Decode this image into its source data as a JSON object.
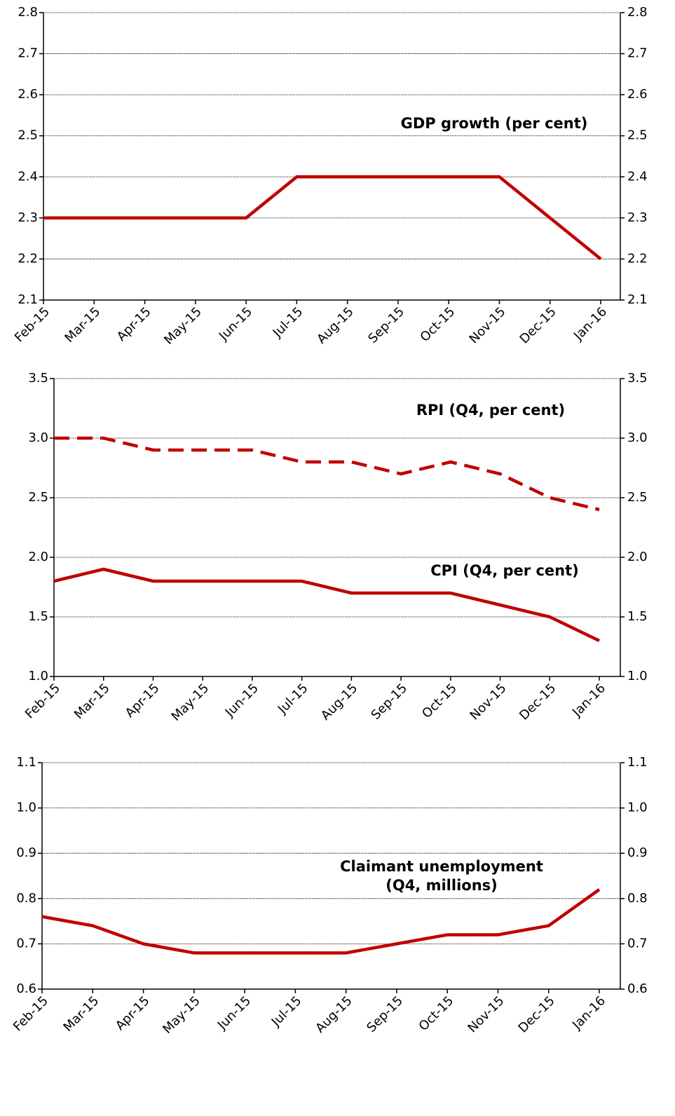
{
  "chart_data": [
    {
      "type": "line",
      "categories": [
        "Feb-15",
        "Mar-15",
        "Apr-15",
        "May-15",
        "Jun-15",
        "Jul-15",
        "Aug-15",
        "Sep-15",
        "Oct-15",
        "Nov-15",
        "Dec-15",
        "Jan-16"
      ],
      "series": [
        {
          "name": "GDP growth (per cent)",
          "color": "#c00000",
          "style": "solid",
          "values": [
            2.3,
            2.3,
            2.3,
            2.3,
            2.3,
            2.4,
            2.4,
            2.4,
            2.4,
            2.4,
            2.3,
            2.2
          ]
        }
      ],
      "ylim": [
        2.1,
        2.8
      ],
      "yticks": [
        2.1,
        2.2,
        2.3,
        2.4,
        2.5,
        2.6,
        2.7,
        2.8
      ],
      "y2lim": [
        2.1,
        2.8
      ],
      "y2ticks": [
        2.1,
        2.2,
        2.3,
        2.4,
        2.5,
        2.6,
        2.7,
        2.8
      ],
      "grid": true
    },
    {
      "type": "line",
      "categories": [
        "Feb-15",
        "Mar-15",
        "Apr-15",
        "May-15",
        "Jun-15",
        "Jul-15",
        "Aug-15",
        "Sep-15",
        "Oct-15",
        "Nov-15",
        "Dec-15",
        "Jan-16"
      ],
      "series": [
        {
          "name": "RPI (Q4, per cent)",
          "color": "#c00000",
          "style": "dashed",
          "values": [
            3.0,
            3.0,
            2.9,
            2.9,
            2.9,
            2.8,
            2.8,
            2.7,
            2.8,
            2.7,
            2.5,
            2.4
          ]
        },
        {
          "name": "CPI (Q4, per cent)",
          "color": "#c00000",
          "style": "solid",
          "values": [
            1.8,
            1.9,
            1.8,
            1.8,
            1.8,
            1.8,
            1.7,
            1.7,
            1.7,
            1.6,
            1.5,
            1.3
          ]
        }
      ],
      "ylim": [
        1.0,
        3.5
      ],
      "yticks": [
        {
          "value": 1,
          "label": "1.0"
        },
        1.5,
        {
          "value": 2,
          "label": "2.0"
        },
        2.5,
        {
          "value": 3,
          "label": "3.0"
        },
        3.5
      ],
      "y2lim": [
        1.0,
        3.5
      ],
      "y2ticks": [
        {
          "value": 1,
          "label": "1.0"
        },
        1.5,
        {
          "value": 2,
          "label": "2.0"
        },
        2.5,
        {
          "value": 3,
          "label": "3.0"
        },
        3.5
      ],
      "grid": true
    },
    {
      "type": "line",
      "categories": [
        "Feb-15",
        "Mar-15",
        "Apr-15",
        "May-15",
        "Jun-15",
        "Jul-15",
        "Aug-15",
        "Sep-15",
        "Oct-15",
        "Nov-15",
        "Dec-15",
        "Jan-16"
      ],
      "series": [
        {
          "name": "Claimant unemployment (Q4, millions)",
          "color": "#c00000",
          "style": "solid",
          "values": [
            0.76,
            0.74,
            0.7,
            0.68,
            0.68,
            0.68,
            0.68,
            0.7,
            0.72,
            0.72,
            0.74,
            0.82
          ]
        }
      ],
      "ylim": [
        0.6,
        1.1
      ],
      "yticks": [
        0.6,
        0.7,
        0.8,
        0.9,
        {
          "value": 1,
          "label": "1.0"
        },
        1.1
      ],
      "y2lim": [
        0.6,
        1.1
      ],
      "y2ticks": [
        0.6,
        0.7,
        0.8,
        0.9,
        {
          "value": 1,
          "label": "1.0"
        },
        1.1
      ],
      "grid": true
    }
  ]
}
